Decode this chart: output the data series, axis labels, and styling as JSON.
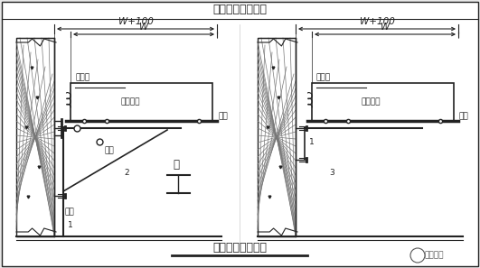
{
  "title_top": "槽架沿墙水平安装",
  "title_bottom": "槽架沿墙水平安装",
  "bg_color": "#e8e8e8",
  "line_color": "#222222",
  "wall_hatch_color": "#888888",
  "label_color": "#222222",
  "watermark": "暖通南社",
  "fs_title": 9,
  "fs_label": 6.5,
  "fs_dim": 7.5
}
